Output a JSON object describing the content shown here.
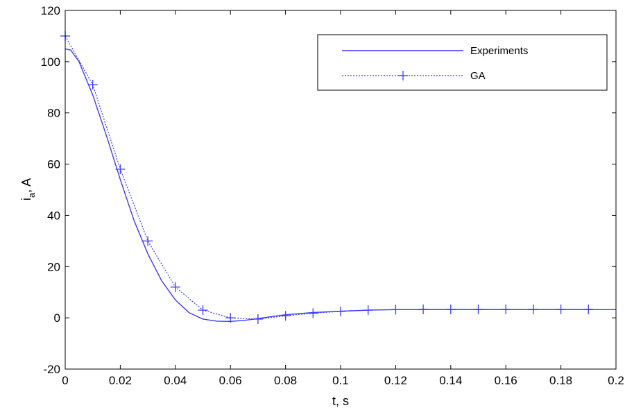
{
  "chart_data": {
    "type": "line",
    "title": "",
    "xlabel": "t, s",
    "ylabel_main": "i",
    "ylabel_sub": "a",
    "ylabel_suffix": ", A",
    "xlim": [
      0,
      0.2
    ],
    "ylim": [
      -20,
      120
    ],
    "x_ticks": [
      0,
      0.02,
      0.04,
      0.06,
      0.08,
      0.1,
      0.12,
      0.14,
      0.16,
      0.18,
      0.2
    ],
    "x_tick_labels": [
      "0",
      "0.02",
      "0.04",
      "0.06",
      "0.08",
      "0.1",
      "0.12",
      "0.14",
      "0.16",
      "0.18",
      "0.2"
    ],
    "y_ticks": [
      -20,
      0,
      20,
      40,
      60,
      80,
      100,
      120
    ],
    "y_tick_labels": [
      "-20",
      "0",
      "20",
      "40",
      "60",
      "80",
      "100",
      "120"
    ],
    "grid": false,
    "legend_position": "top-right",
    "line_color": "#3a3aff",
    "series": [
      {
        "name": "Experiments",
        "style": "solid",
        "marker": "none",
        "x": [
          0,
          0.002,
          0.005,
          0.01,
          0.015,
          0.02,
          0.025,
          0.03,
          0.035,
          0.04,
          0.045,
          0.05,
          0.055,
          0.06,
          0.065,
          0.07,
          0.075,
          0.08,
          0.09,
          0.1,
          0.11,
          0.12,
          0.13,
          0.14,
          0.15,
          0.16,
          0.17,
          0.18,
          0.19,
          0.2
        ],
        "values": [
          105,
          104.5,
          100,
          87,
          71,
          54,
          38,
          25,
          14.5,
          7,
          2,
          -0.5,
          -1.3,
          -1.4,
          -1,
          -0.3,
          0.5,
          1.2,
          2.1,
          2.6,
          3,
          3.2,
          3.2,
          3.2,
          3.2,
          3.2,
          3.2,
          3.2,
          3.2,
          3.2
        ]
      },
      {
        "name": "GA",
        "style": "dotted",
        "marker": "+",
        "x": [
          0,
          0.01,
          0.02,
          0.03,
          0.04,
          0.05,
          0.06,
          0.07,
          0.08,
          0.09,
          0.1,
          0.11,
          0.12,
          0.13,
          0.14,
          0.15,
          0.16,
          0.17,
          0.18,
          0.19
        ],
        "values": [
          110,
          91,
          58,
          30,
          12,
          3,
          0,
          -0.5,
          0.8,
          1.8,
          2.5,
          3,
          3.2,
          3.3,
          3.3,
          3.3,
          3.3,
          3.3,
          3.3,
          3.3
        ]
      }
    ]
  }
}
